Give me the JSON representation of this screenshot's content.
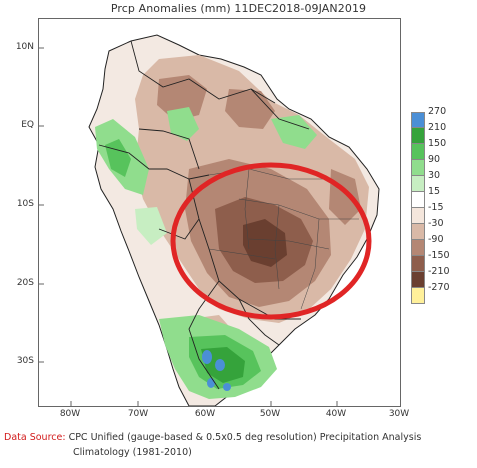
{
  "title": "Prcp Anomalies (mm)  11DEC2018-09JAN2019",
  "lat_labels": [
    "10N",
    "EQ",
    "10S",
    "20S",
    "30S"
  ],
  "lon_labels": [
    "80W",
    "70W",
    "60W",
    "50W",
    "40W",
    "30W"
  ],
  "legend": {
    "labels": [
      "270",
      "210",
      "150",
      "90",
      "30",
      "15",
      "-15",
      "-30",
      "-90",
      "-150",
      "-210",
      "-270"
    ],
    "colors": [
      "#4b8fd6",
      "#35a33b",
      "#57c35c",
      "#90dd8d",
      "#c7eec2",
      "#ffffff",
      "#f4e6dc",
      "#d9b9a7",
      "#b48774",
      "#8e5e4c",
      "#6a3f30",
      "#fff09a"
    ]
  },
  "footer": {
    "source_label": "Data Source:",
    "source_text": " CPC Unified (gauge-based & 0.5x0.5 deg resolution) Precipitation Analysis",
    "climatology": "Climatology (1981-2010)"
  },
  "colors": {
    "highlight_circle": "#e02525"
  }
}
